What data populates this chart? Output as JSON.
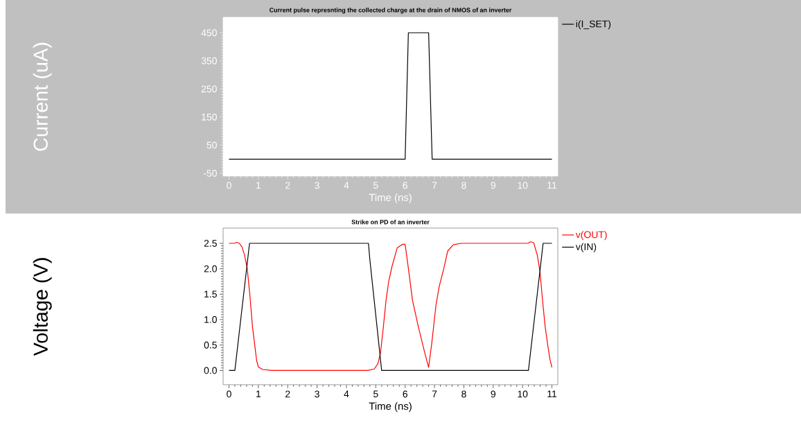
{
  "chart_data": [
    {
      "type": "line",
      "title": "Current pulse represnting the collected charge at the drain of NMOS of an inverter",
      "xlabel": "Time (ns)",
      "ylabel": "Current (uA)",
      "legend": "right",
      "xlim": [
        -0.2,
        11.2
      ],
      "ylim": [
        -60,
        505
      ],
      "xticks": [
        0,
        1,
        2,
        3,
        4,
        5,
        6,
        7,
        8,
        9,
        10,
        11
      ],
      "yticks": [
        -50,
        50,
        150,
        250,
        350,
        450
      ],
      "series": [
        {
          "name": "i(I_SET)",
          "color": "#000000",
          "x": [
            0,
            6.0,
            6.11,
            6.8,
            6.92,
            11
          ],
          "values": [
            0,
            0,
            450,
            450,
            0,
            0
          ]
        }
      ]
    },
    {
      "type": "line",
      "title": "Strike on PD of an inverter",
      "xlabel": "Time (ns)",
      "ylabel": "Voltage (V)",
      "legend": "right",
      "xlim": [
        -0.2,
        11.2
      ],
      "ylim": [
        -0.28,
        2.8
      ],
      "xticks": [
        0,
        1,
        2,
        3,
        4,
        5,
        6,
        7,
        8,
        9,
        10,
        11
      ],
      "yticks": [
        {
          "value": 0,
          "label": "0.0"
        },
        0.5,
        {
          "value": 1,
          "label": "1.0"
        },
        1.5,
        {
          "value": 2,
          "label": "2.0"
        },
        2.5
      ],
      "series": [
        {
          "name": "v(OUT)",
          "color": "#ff0000",
          "x": [
            0,
            0.18,
            0.27,
            0.35,
            0.44,
            0.53,
            0.62,
            0.71,
            0.8,
            0.89,
            0.94,
            1.0,
            1.14,
            1.45,
            2.0,
            4.73,
            4.95,
            5.07,
            5.16,
            5.25,
            5.35,
            5.44,
            5.55,
            5.73,
            5.91,
            6.0,
            6.11,
            6.25,
            6.45,
            6.65,
            6.8,
            6.91,
            7.05,
            7.16,
            7.32,
            7.45,
            7.64,
            7.91,
            10.18,
            10.27,
            10.38,
            10.5,
            10.59,
            10.68,
            10.77,
            10.86,
            10.93,
            11.0
          ],
          "values": [
            2.5,
            2.5,
            2.52,
            2.5,
            2.43,
            2.27,
            2.01,
            1.49,
            0.86,
            0.44,
            0.2,
            0.07,
            0.02,
            0,
            0,
            0,
            0.03,
            0.13,
            0.34,
            0.81,
            1.38,
            1.75,
            2.04,
            2.41,
            2.48,
            2.48,
            2.01,
            1.38,
            0.86,
            0.39,
            0.06,
            0.55,
            1.28,
            1.65,
            2.01,
            2.35,
            2.47,
            2.5,
            2.5,
            2.53,
            2.51,
            2.27,
            1.96,
            1.38,
            0.86,
            0.49,
            0.23,
            0.06
          ]
        },
        {
          "name": "v(IN)",
          "color": "#000000",
          "x": [
            0,
            0.2,
            0.7,
            4.75,
            4.8,
            5.2,
            10.2,
            10.7,
            11
          ],
          "values": [
            0,
            0,
            2.5,
            2.5,
            2.17,
            0,
            0,
            2.5,
            2.5
          ]
        }
      ]
    }
  ]
}
